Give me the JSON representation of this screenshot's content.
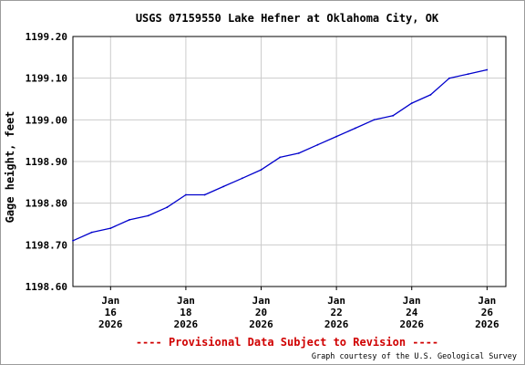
{
  "chart_data": {
    "type": "line",
    "title": "USGS 07159550 Lake Hefner at Oklahoma City, OK",
    "ylabel": "Gage height, feet",
    "xlabel": "",
    "ylim": [
      1198.6,
      1199.2
    ],
    "yticks": [
      "1199.20",
      "1199.10",
      "1199.00",
      "1198.90",
      "1198.80",
      "1198.70",
      "1198.60"
    ],
    "xlim": [
      "2026-01-15T00:00",
      "2026-01-26T12:00"
    ],
    "xticks": [
      {
        "date": "2026-01-16",
        "month": "Jan",
        "day": "16",
        "year": "2026"
      },
      {
        "date": "2026-01-18",
        "month": "Jan",
        "day": "18",
        "year": "2026"
      },
      {
        "date": "2026-01-20",
        "month": "Jan",
        "day": "20",
        "year": "2026"
      },
      {
        "date": "2026-01-22",
        "month": "Jan",
        "day": "22",
        "year": "2026"
      },
      {
        "date": "2026-01-24",
        "month": "Jan",
        "day": "24",
        "year": "2026"
      },
      {
        "date": "2026-01-26",
        "month": "Jan",
        "day": "26",
        "year": "2026"
      }
    ],
    "grid": true,
    "series": [
      {
        "name": "",
        "color": "#0000cc",
        "points": [
          [
            "2026-01-15T00:00",
            1198.71
          ],
          [
            "2026-01-15T12:00",
            1198.73
          ],
          [
            "2026-01-16T00:00",
            1198.74
          ],
          [
            "2026-01-16T12:00",
            1198.76
          ],
          [
            "2026-01-17T00:00",
            1198.77
          ],
          [
            "2026-01-17T12:00",
            1198.79
          ],
          [
            "2026-01-18T00:00",
            1198.82
          ],
          [
            "2026-01-18T12:00",
            1198.82
          ],
          [
            "2026-01-19T00:00",
            1198.84
          ],
          [
            "2026-01-19T12:00",
            1198.86
          ],
          [
            "2026-01-20T00:00",
            1198.88
          ],
          [
            "2026-01-20T12:00",
            1198.91
          ],
          [
            "2026-01-21T00:00",
            1198.92
          ],
          [
            "2026-01-21T12:00",
            1198.94
          ],
          [
            "2026-01-22T00:00",
            1198.96
          ],
          [
            "2026-01-22T12:00",
            1198.98
          ],
          [
            "2026-01-23T00:00",
            1199.0
          ],
          [
            "2026-01-23T12:00",
            1199.01
          ],
          [
            "2026-01-24T00:00",
            1199.04
          ],
          [
            "2026-01-24T12:00",
            1199.06
          ],
          [
            "2026-01-25T00:00",
            1199.1
          ],
          [
            "2026-01-25T12:00",
            1199.11
          ],
          [
            "2026-01-26T00:00",
            1199.12
          ]
        ]
      }
    ]
  },
  "footer": {
    "provisional": "---- Provisional Data Subject to Revision ----",
    "credit": "Graph courtesy of the U.S. Geological Survey"
  },
  "colors": {
    "line": "#0000cc",
    "provisional": "#d00000",
    "grid": "#cccccc"
  }
}
